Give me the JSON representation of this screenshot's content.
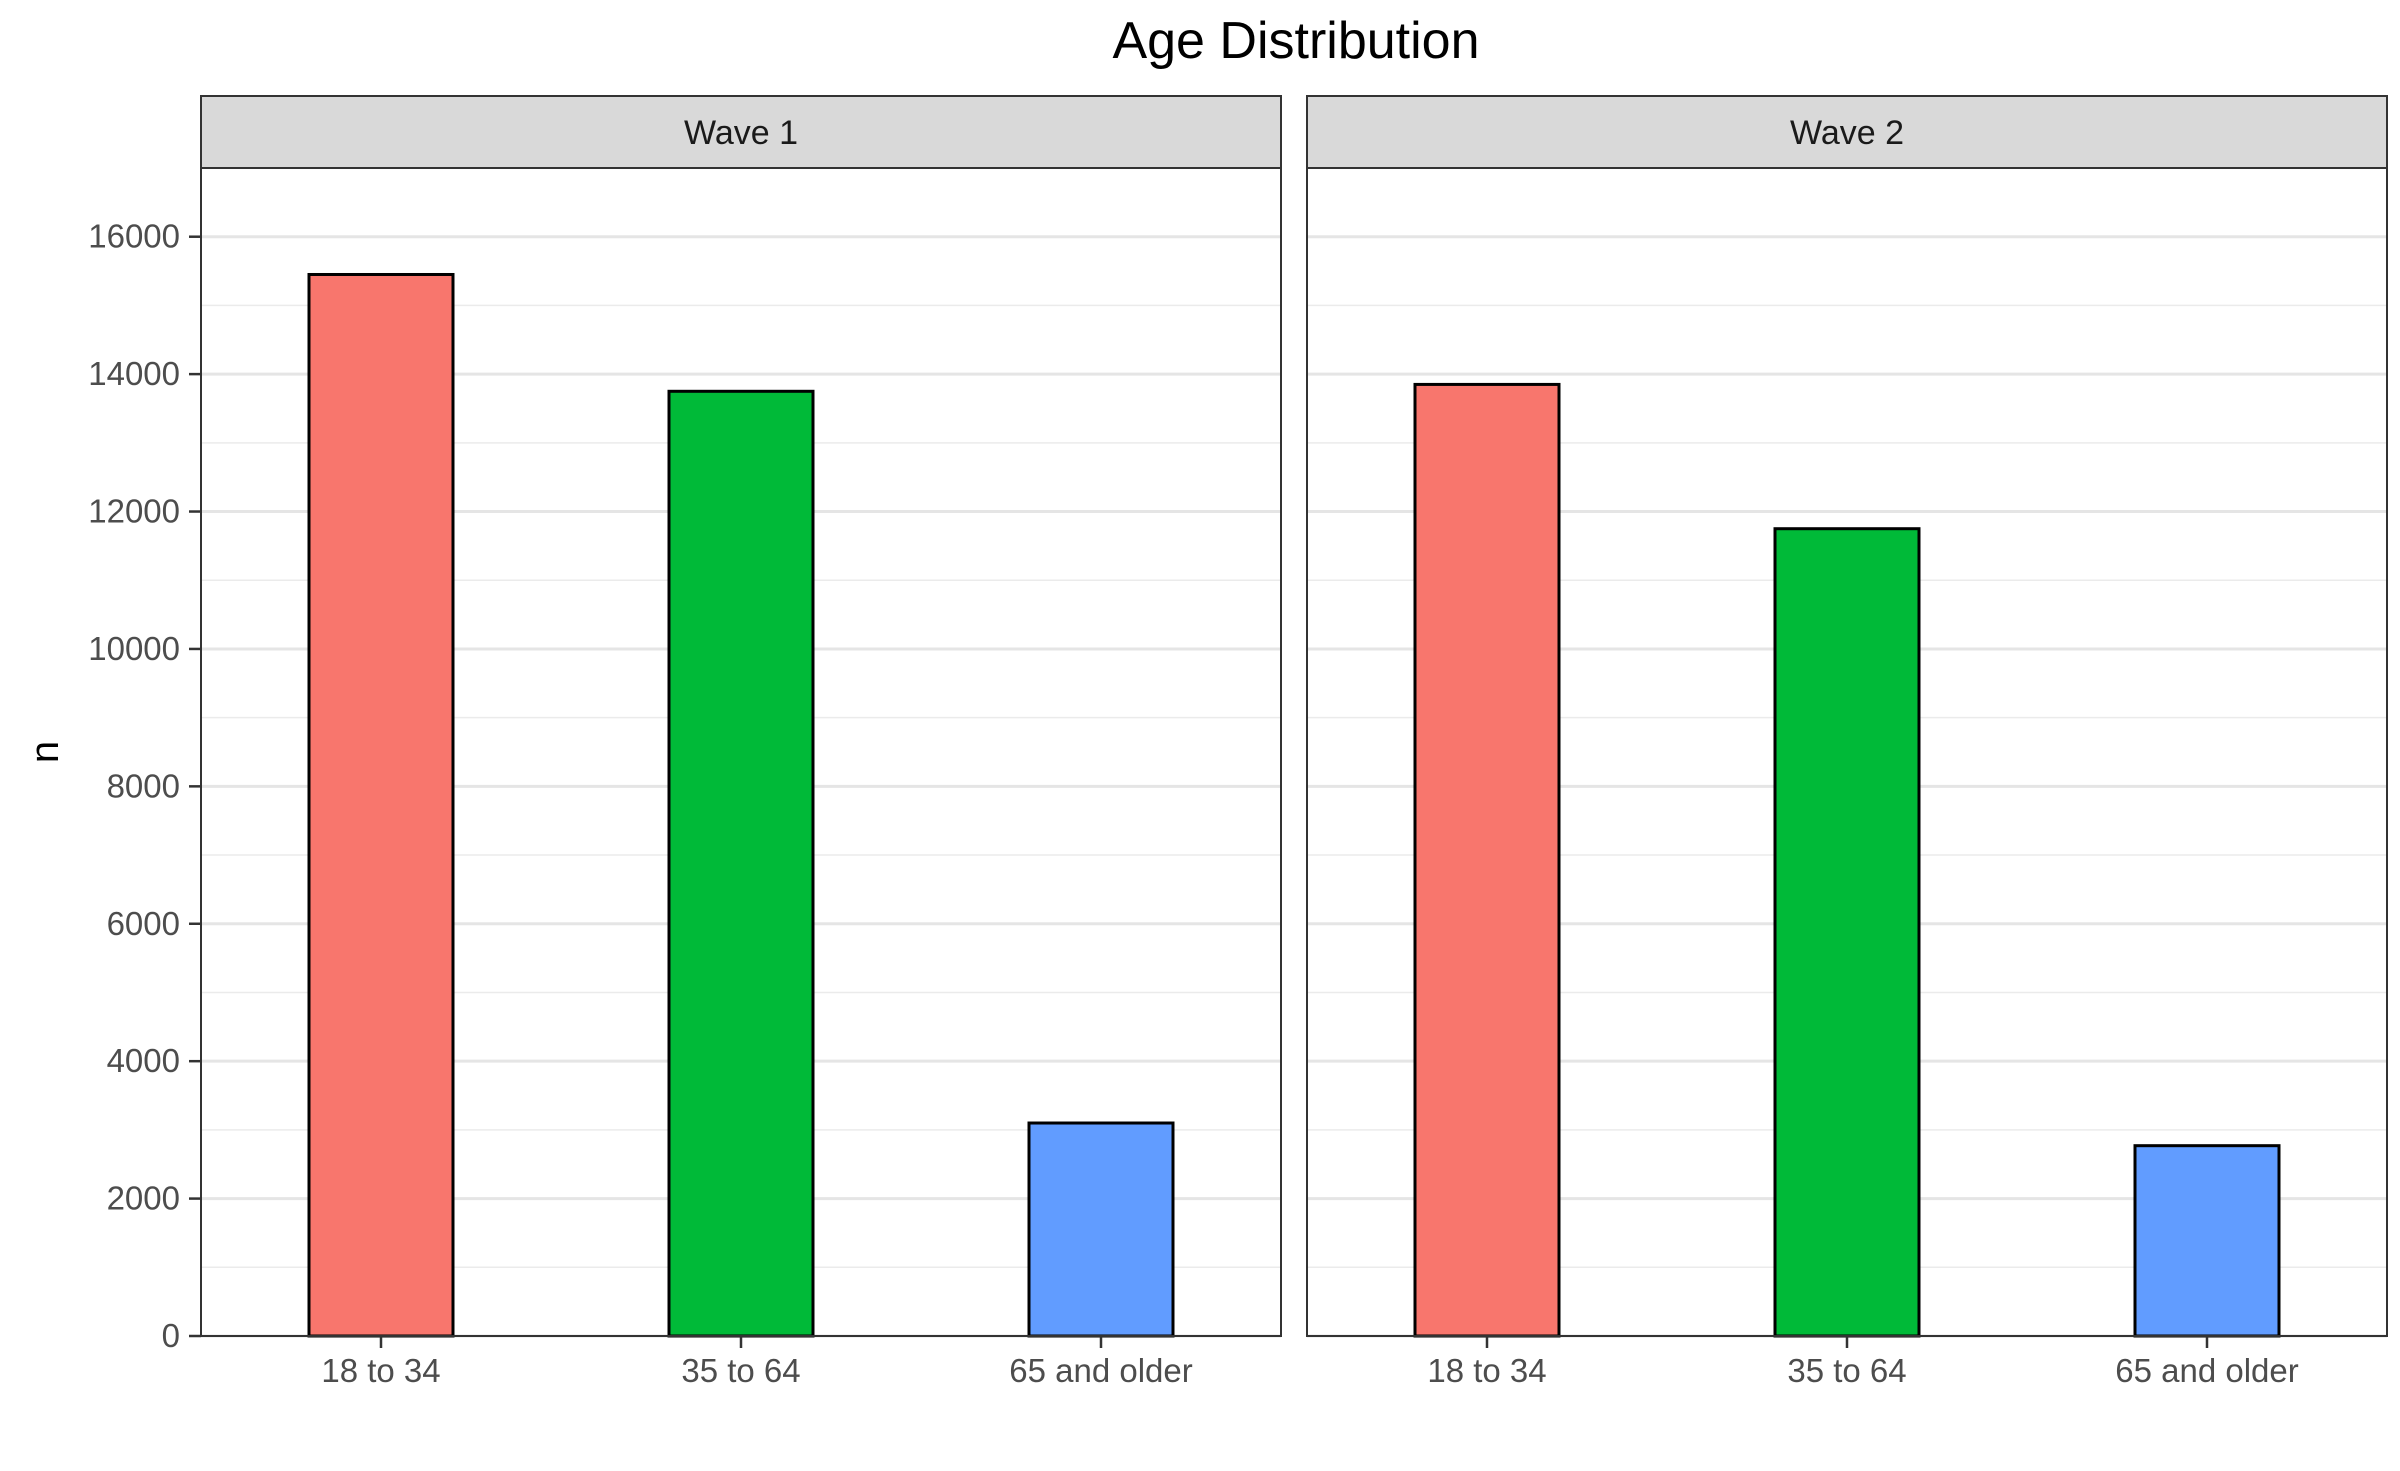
{
  "chart_data": {
    "type": "bar",
    "title": "Age Distribution",
    "xlabel": "",
    "ylabel": "n",
    "ylim": [
      0,
      17000
    ],
    "yticks": [
      0,
      2000,
      4000,
      6000,
      8000,
      10000,
      12000,
      14000,
      16000
    ],
    "categories": [
      "18 to 34",
      "35 to 64",
      "65 and older"
    ],
    "colors": [
      "#F8766D",
      "#00BA38",
      "#619CFF"
    ],
    "grid": true,
    "legend": "none",
    "facets": [
      {
        "name": "Wave 1",
        "values": [
          15450,
          13750,
          3100
        ]
      },
      {
        "name": "Wave 2",
        "values": [
          13850,
          11750,
          2770
        ]
      }
    ]
  }
}
